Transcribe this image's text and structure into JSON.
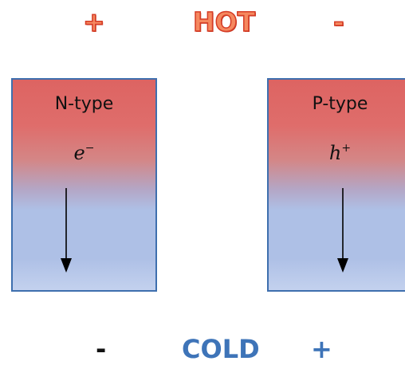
{
  "top": {
    "left_sign": "+",
    "label": "HOT",
    "right_sign": "-"
  },
  "bottom": {
    "left_sign": "-",
    "label": "COLD",
    "right_sign": "+"
  },
  "n_block": {
    "title": "N-type",
    "carrier_base": "e",
    "carrier_sup": "−"
  },
  "p_block": {
    "title": "P-type",
    "carrier_base": "h",
    "carrier_sup": "+"
  },
  "colors": {
    "hot_text": "#f5885f",
    "hot_outline": "#d63c25",
    "cold_text": "#3e74b8",
    "block_border": "#3e6fae",
    "block_hot": "#dd6462",
    "block_cold": "#aec0e6"
  }
}
